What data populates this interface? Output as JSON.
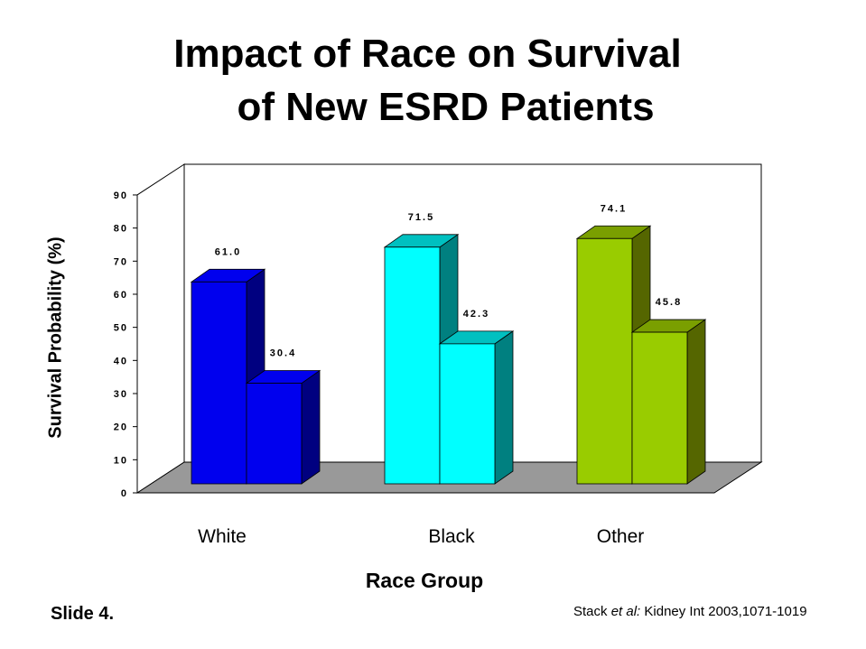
{
  "title_line1": "Impact of Race on Survival",
  "title_line2": "of New ESRD Patients",
  "footer": {
    "slide_label": "Slide 4.",
    "citation_author": "Stack ",
    "citation_etal": "et al:",
    "citation_rest": " Kidney Int 2003,1071-1019"
  },
  "chart_data": {
    "type": "bar",
    "title": "Impact of Race on Survival of New ESRD Patients",
    "xlabel": "Race Group",
    "ylabel": "Survival Probability (%)",
    "categories": [
      "White",
      "Black",
      "Other"
    ],
    "series": [
      {
        "values": [
          61.0,
          71.5,
          74.1
        ]
      },
      {
        "values": [
          30.4,
          42.3,
          45.8
        ]
      }
    ],
    "data_labels": [
      [
        "61.0",
        "71.5",
        "74.1"
      ],
      [
        "30.4",
        "42.3",
        "45.8"
      ]
    ],
    "yticks": [
      0,
      10,
      20,
      30,
      40,
      50,
      60,
      70,
      80,
      90
    ],
    "ylim": [
      0,
      90
    ],
    "grid": false,
    "legend": "none",
    "style": "3d",
    "colors": {
      "White": {
        "front": "#0000ee",
        "side": "#000080",
        "top": "#0000ee"
      },
      "Black": {
        "front": "#00ffff",
        "side": "#008080",
        "top": "#00c0c0"
      },
      "Other": {
        "front": "#99cc00",
        "side": "#556600",
        "top": "#7a9f00"
      }
    },
    "floor_color": "#999999"
  }
}
